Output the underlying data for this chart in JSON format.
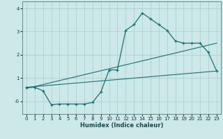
{
  "xlabel": "Humidex (Indice chaleur)",
  "xlim": [
    -0.5,
    23.5
  ],
  "ylim": [
    -0.55,
    4.3
  ],
  "background_color": "#cce8e8",
  "grid_color": "#aacccc",
  "line_color": "#1a7070",
  "curve1_x": [
    0,
    1,
    2,
    3,
    4,
    5,
    6,
    7,
    8,
    9,
    10,
    11,
    12,
    13,
    14,
    15,
    16,
    17,
    18,
    19,
    20,
    21,
    22,
    23
  ],
  "curve1_y": [
    0.6,
    0.6,
    0.45,
    -0.15,
    -0.12,
    -0.12,
    -0.12,
    -0.12,
    -0.05,
    0.4,
    1.35,
    1.35,
    3.05,
    3.3,
    3.8,
    3.55,
    3.3,
    3.05,
    2.6,
    2.5,
    2.5,
    2.5,
    2.1,
    1.3
  ],
  "curve1_marker_x": [
    0,
    1,
    2,
    3,
    4,
    5,
    6,
    7,
    8,
    9,
    10,
    11,
    12,
    13,
    14,
    15,
    16,
    17,
    18,
    19,
    20,
    21,
    22,
    23
  ],
  "curve1_marker_y": [
    0.6,
    0.6,
    0.45,
    -0.15,
    -0.12,
    -0.12,
    -0.12,
    -0.12,
    -0.05,
    0.4,
    1.35,
    1.35,
    3.05,
    3.3,
    3.8,
    3.55,
    3.3,
    3.05,
    2.6,
    2.5,
    2.5,
    2.5,
    2.1,
    1.3
  ],
  "curve2_x": [
    0,
    23
  ],
  "curve2_y": [
    0.6,
    1.3
  ],
  "curve3_x": [
    0,
    23
  ],
  "curve3_y": [
    0.55,
    2.5
  ],
  "yticks": [
    -0.0,
    1,
    2,
    3,
    4
  ],
  "ytick_labels": [
    "-0",
    "1",
    "2",
    "3",
    "4"
  ],
  "xticks": [
    0,
    1,
    2,
    3,
    4,
    5,
    6,
    7,
    8,
    9,
    10,
    11,
    12,
    13,
    14,
    15,
    16,
    17,
    18,
    19,
    20,
    21,
    22,
    23
  ]
}
